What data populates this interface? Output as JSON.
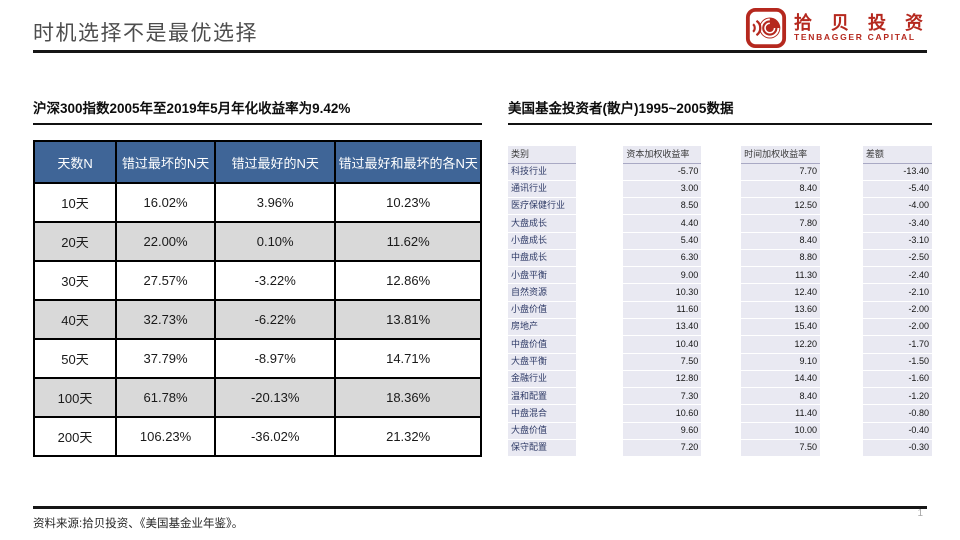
{
  "page": {
    "title": "时机选择不是最优选择",
    "source_note": "资料来源:拾贝投资、《美国基金业年鉴》。",
    "page_number": "1"
  },
  "logo": {
    "name_cn": "拾 贝 投 资",
    "name_en": "TENBAGGER CAPITAL",
    "brand_color": "#b5281e"
  },
  "left_panel": {
    "subtitle": "沪深300指数2005年至2019年5月年化收益率为9.42%",
    "table": {
      "header_bg": "#3f6597",
      "alt_row_bg": "#d9d9d9",
      "headers": [
        "天数N",
        "错过最坏的N天",
        "错过最好的N天",
        "错过最好和最坏的各N天"
      ],
      "rows": [
        [
          "10天",
          "16.02%",
          "3.96%",
          "10.23%"
        ],
        [
          "20天",
          "22.00%",
          "0.10%",
          "11.62%"
        ],
        [
          "30天",
          "27.57%",
          "-3.22%",
          "12.86%"
        ],
        [
          "40天",
          "32.73%",
          "-6.22%",
          "13.81%"
        ],
        [
          "50天",
          "37.79%",
          "-8.97%",
          "14.71%"
        ],
        [
          "100天",
          "61.78%",
          "-20.13%",
          "18.36%"
        ],
        [
          "200天",
          "106.23%",
          "-36.02%",
          "21.32%"
        ]
      ]
    }
  },
  "right_panel": {
    "subtitle": "美国基金投资者(散户)1995~2005数据",
    "table": {
      "cell_bg": "#e9e9f2",
      "headers": [
        "类别",
        "资本加权收益率",
        "时间加权收益率",
        "差额"
      ],
      "rows": [
        [
          "科技行业",
          "-5.70",
          "7.70",
          "-13.40"
        ],
        [
          "通讯行业",
          "3.00",
          "8.40",
          "-5.40"
        ],
        [
          "医疗保健行业",
          "8.50",
          "12.50",
          "-4.00"
        ],
        [
          "大盘成长",
          "4.40",
          "7.80",
          "-3.40"
        ],
        [
          "小盘成长",
          "5.40",
          "8.40",
          "-3.10"
        ],
        [
          "中盘成长",
          "6.30",
          "8.80",
          "-2.50"
        ],
        [
          "小盘平衡",
          "9.00",
          "11.30",
          "-2.40"
        ],
        [
          "自然资源",
          "10.30",
          "12.40",
          "-2.10"
        ],
        [
          "小盘价值",
          "11.60",
          "13.60",
          "-2.00"
        ],
        [
          "房地产",
          "13.40",
          "15.40",
          "-2.00"
        ],
        [
          "中盘价值",
          "10.40",
          "12.20",
          "-1.70"
        ],
        [
          "大盘平衡",
          "7.50",
          "9.10",
          "-1.50"
        ],
        [
          "金融行业",
          "12.80",
          "14.40",
          "-1.60"
        ],
        [
          "温和配置",
          "7.30",
          "8.40",
          "-1.20"
        ],
        [
          "中盘混合",
          "10.60",
          "11.40",
          "-0.80"
        ],
        [
          "大盘价值",
          "9.60",
          "10.00",
          "-0.40"
        ],
        [
          "保守配置",
          "7.20",
          "7.50",
          "-0.30"
        ]
      ]
    }
  }
}
